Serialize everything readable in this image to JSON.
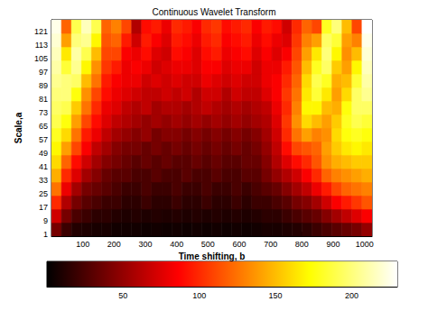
{
  "chart_data": {
    "type": "heatmap",
    "title": "Continuous Wavelet Transform",
    "x_label": "Time shifting, b",
    "y_label": "Scale,a",
    "x": [
      16,
      48,
      80,
      112,
      144,
      176,
      208,
      240,
      272,
      304,
      336,
      368,
      400,
      432,
      464,
      496,
      528,
      560,
      592,
      624,
      656,
      688,
      720,
      752,
      784,
      816,
      848,
      880,
      912,
      944,
      976,
      1008
    ],
    "y": [
      4,
      12,
      20,
      28,
      36,
      44,
      52,
      60,
      68,
      76,
      84,
      92,
      100,
      108,
      116,
      124
    ],
    "values": [
      [
        40,
        20,
        12,
        10,
        8,
        8,
        6,
        6,
        6,
        5,
        6,
        5,
        6,
        5,
        6,
        5,
        6,
        5,
        6,
        5,
        6,
        8,
        8,
        10,
        12,
        15,
        20,
        25,
        30,
        35,
        40,
        50
      ],
      [
        70,
        40,
        25,
        20,
        15,
        15,
        12,
        10,
        12,
        10,
        12,
        10,
        12,
        10,
        12,
        10,
        12,
        10,
        12,
        10,
        12,
        15,
        15,
        20,
        25,
        30,
        35,
        45,
        55,
        65,
        75,
        85
      ],
      [
        100,
        60,
        40,
        30,
        25,
        20,
        20,
        15,
        15,
        20,
        15,
        15,
        20,
        15,
        15,
        20,
        15,
        15,
        20,
        15,
        20,
        20,
        25,
        30,
        40,
        45,
        55,
        70,
        85,
        95,
        105,
        115
      ],
      [
        125,
        80,
        55,
        40,
        35,
        30,
        25,
        20,
        20,
        25,
        20,
        20,
        25,
        20,
        20,
        25,
        20,
        20,
        25,
        20,
        25,
        30,
        35,
        45,
        55,
        65,
        80,
        95,
        110,
        120,
        125,
        130
      ],
      [
        145,
        100,
        75,
        55,
        45,
        35,
        30,
        30,
        25,
        25,
        30,
        25,
        25,
        30,
        25,
        25,
        30,
        25,
        25,
        30,
        30,
        40,
        50,
        60,
        70,
        85,
        100,
        120,
        130,
        135,
        140,
        145
      ],
      [
        160,
        120,
        90,
        70,
        55,
        45,
        40,
        35,
        30,
        35,
        30,
        35,
        30,
        30,
        35,
        30,
        35,
        30,
        30,
        35,
        35,
        45,
        60,
        75,
        90,
        100,
        115,
        135,
        145,
        150,
        155,
        155
      ],
      [
        170,
        140,
        110,
        85,
        65,
        55,
        45,
        40,
        40,
        35,
        40,
        35,
        40,
        35,
        40,
        35,
        40,
        35,
        40,
        35,
        40,
        50,
        65,
        90,
        110,
        115,
        120,
        140,
        155,
        165,
        170,
        165
      ],
      [
        180,
        160,
        125,
        95,
        80,
        65,
        55,
        50,
        45,
        50,
        40,
        45,
        45,
        40,
        45,
        40,
        45,
        40,
        45,
        40,
        45,
        55,
        70,
        100,
        125,
        140,
        130,
        135,
        160,
        175,
        180,
        175
      ],
      [
        190,
        175,
        140,
        110,
        90,
        75,
        65,
        60,
        55,
        50,
        55,
        50,
        55,
        50,
        55,
        50,
        55,
        50,
        55,
        50,
        55,
        60,
        75,
        105,
        135,
        160,
        150,
        140,
        155,
        180,
        190,
        185
      ],
      [
        195,
        190,
        155,
        125,
        100,
        80,
        75,
        65,
        60,
        65,
        55,
        60,
        60,
        55,
        60,
        65,
        60,
        55,
        60,
        55,
        60,
        65,
        80,
        100,
        130,
        170,
        170,
        150,
        145,
        175,
        195,
        195
      ],
      [
        200,
        200,
        175,
        135,
        110,
        90,
        80,
        75,
        70,
        65,
        65,
        70,
        65,
        70,
        60,
        70,
        70,
        60,
        70,
        65,
        65,
        75,
        85,
        105,
        125,
        165,
        185,
        165,
        140,
        160,
        195,
        205
      ],
      [
        205,
        200,
        195,
        150,
        125,
        95,
        85,
        80,
        80,
        70,
        75,
        70,
        75,
        70,
        70,
        80,
        75,
        70,
        75,
        70,
        70,
        80,
        85,
        100,
        120,
        160,
        190,
        180,
        145,
        150,
        185,
        210
      ],
      [
        210,
        185,
        205,
        170,
        135,
        105,
        95,
        80,
        85,
        80,
        70,
        75,
        80,
        80,
        75,
        85,
        85,
        75,
        80,
        80,
        70,
        80,
        80,
        95,
        115,
        150,
        180,
        195,
        155,
        140,
        170,
        215
      ],
      [
        215,
        165,
        210,
        190,
        150,
        110,
        110,
        85,
        80,
        90,
        75,
        70,
        90,
        85,
        75,
        90,
        95,
        80,
        85,
        90,
        75,
        85,
        75,
        85,
        110,
        140,
        165,
        200,
        170,
        135,
        150,
        220
      ],
      [
        220,
        140,
        200,
        205,
        170,
        115,
        120,
        95,
        70,
        95,
        85,
        75,
        95,
        90,
        80,
        95,
        100,
        85,
        90,
        95,
        80,
        90,
        80,
        75,
        105,
        130,
        140,
        195,
        185,
        140,
        130,
        225
      ],
      [
        225,
        120,
        190,
        215,
        190,
        120,
        130,
        110,
        60,
        90,
        95,
        80,
        100,
        95,
        85,
        100,
        105,
        90,
        95,
        100,
        85,
        95,
        90,
        70,
        100,
        120,
        110,
        180,
        200,
        150,
        110,
        230
      ]
    ],
    "xlim": [
      0,
      1024
    ],
    "ylim": [
      0,
      128
    ],
    "xticks": [
      100,
      200,
      300,
      400,
      500,
      600,
      700,
      800,
      900,
      1000
    ],
    "yticks": [
      1,
      9,
      17,
      25,
      33,
      41,
      49,
      57,
      65,
      73,
      81,
      89,
      97,
      105,
      113,
      121
    ],
    "colorbar": {
      "range": [
        0,
        230
      ],
      "ticks": [
        50,
        100,
        150,
        200
      ]
    }
  }
}
